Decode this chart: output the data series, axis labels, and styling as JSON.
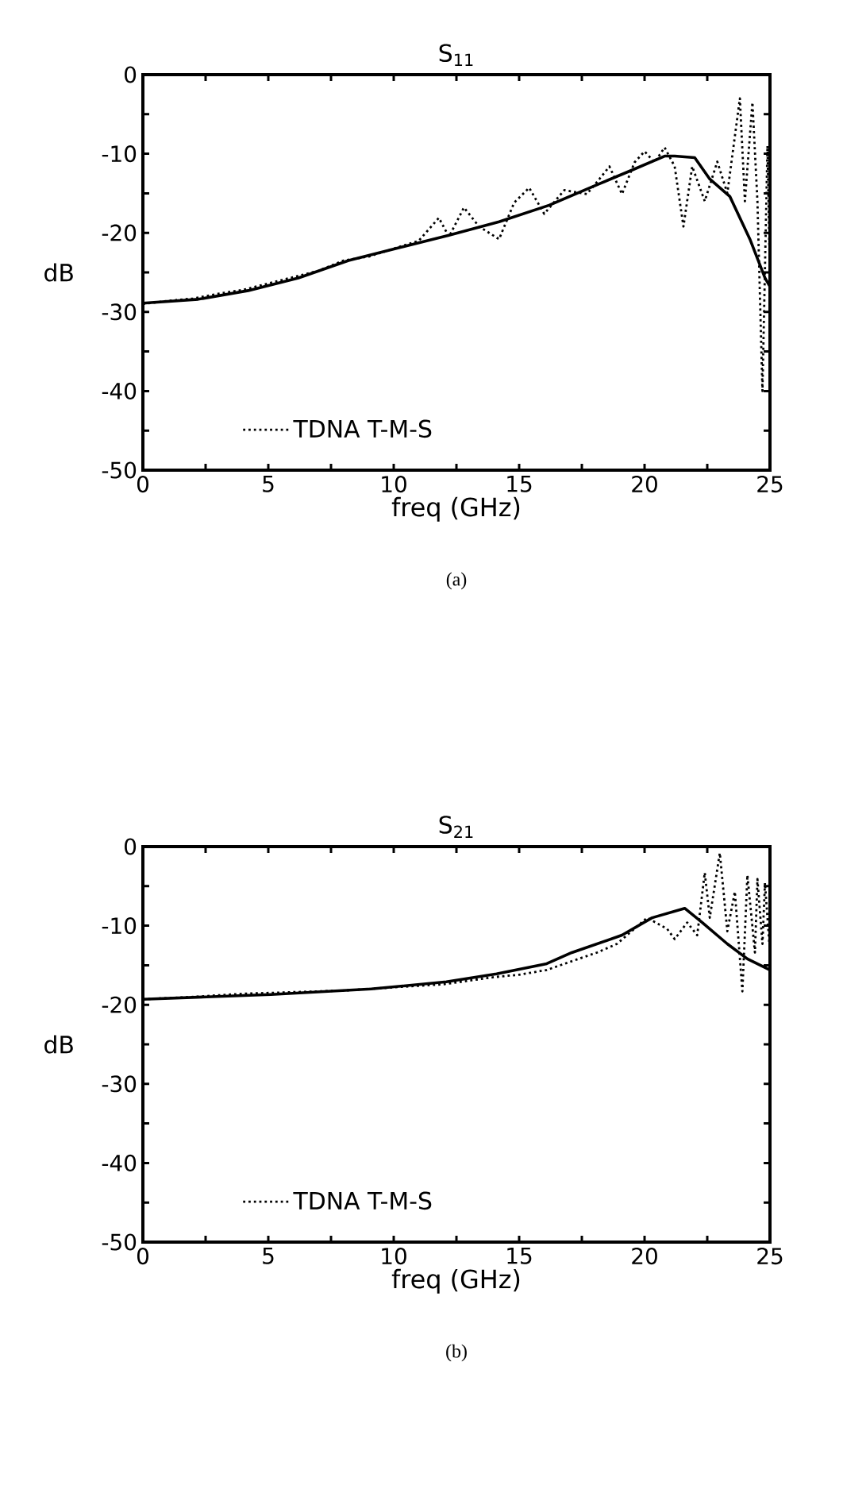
{
  "chart_data": [
    {
      "type": "line",
      "title": "S$_{11}$",
      "xlabel": "freq (GHz)",
      "ylabel": "dB",
      "xlim": [
        0,
        25
      ],
      "ylim": [
        -50,
        0
      ],
      "xticks": [
        0,
        5,
        10,
        15,
        20,
        25
      ],
      "yticks": [
        -50,
        -40,
        -30,
        -20,
        -10,
        0
      ],
      "legend": "bottom",
      "annotations": [
        "(a)"
      ],
      "series": [
        {
          "name": "TDNA T-M-S",
          "color": "#000000",
          "line_style": "dotted",
          "x": [
            0,
            1,
            2,
            3,
            4,
            5,
            6,
            7,
            8,
            9,
            10,
            11,
            11.8,
            12.2,
            12.8,
            13.4,
            14.2,
            14.8,
            15.4,
            16,
            16.8,
            17.7,
            18.2,
            18.6,
            19.1,
            19.6,
            20,
            20.4,
            20.8,
            21.2,
            21.55,
            21.9,
            22.4,
            22.9,
            23.3,
            23.8,
            24,
            24.3,
            24.5,
            24.7,
            24.9,
            25
          ],
          "values": [
            -29,
            -28.6,
            -28.3,
            -27.7,
            -27.2,
            -26.4,
            -25.6,
            -24.8,
            -23.5,
            -23,
            -22,
            -21,
            -18.1,
            -20.5,
            -16.8,
            -19.2,
            -20.8,
            -16.2,
            -14.3,
            -17.6,
            -14.6,
            -15.1,
            -13.2,
            -11.6,
            -15.1,
            -11.1,
            -9.7,
            -11.1,
            -9.2,
            -11.6,
            -19.2,
            -11.6,
            -16,
            -11,
            -15,
            -3,
            -16,
            -3.5,
            -16,
            -40,
            -9,
            -26
          ]
        },
        {
          "color": "#000000",
          "line_style": "solid",
          "x": [
            0,
            2.2,
            4.2,
            6.2,
            8.2,
            10.2,
            12.2,
            14.2,
            16.2,
            18.2,
            19.4,
            20.8,
            21.2,
            22,
            22.6,
            23.4,
            24.2,
            24.8,
            25
          ],
          "values": [
            -28.9,
            -28.4,
            -27.3,
            -25.7,
            -23.5,
            -21.9,
            -20.3,
            -18.6,
            -16.5,
            -13.8,
            -12.2,
            -10.3,
            -10.3,
            -10.5,
            -13.2,
            -15.4,
            -20.8,
            -25.7,
            -26.8
          ]
        }
      ]
    },
    {
      "type": "line",
      "title": "S$_{21}$",
      "xlabel": "freq (GHz)",
      "ylabel": "dB",
      "xlim": [
        0,
        25
      ],
      "ylim": [
        -50,
        0
      ],
      "xticks": [
        0,
        5,
        10,
        15,
        20,
        25
      ],
      "yticks": [
        -50,
        -40,
        -30,
        -20,
        -10,
        0
      ],
      "legend": "bottom",
      "annotations": [
        "(b)"
      ],
      "series": [
        {
          "name": "TDNA T-M-S",
          "color": "#000000",
          "line_style": "dotted",
          "x": [
            0,
            2,
            4,
            6,
            8,
            10,
            12,
            14,
            15,
            16.1,
            17,
            18.1,
            18.9,
            20.1,
            20.9,
            21.2,
            21.7,
            22.1,
            22.4,
            22.6,
            23,
            23.3,
            23.6,
            23.9,
            24.1,
            24.4,
            24.5,
            24.7,
            24.8,
            25
          ],
          "values": [
            -19.3,
            -19,
            -18.6,
            -18.4,
            -18.2,
            -17.8,
            -17.4,
            -16.5,
            -16.2,
            -15.6,
            -14.6,
            -13.4,
            -12.3,
            -9,
            -10.4,
            -11.7,
            -9.6,
            -11.2,
            -3.3,
            -9,
            -0.8,
            -10.7,
            -5.7,
            -18.3,
            -3.6,
            -13.4,
            -4.1,
            -12.3,
            -4.6,
            -13.4
          ]
        },
        {
          "color": "#000000",
          "line_style": "solid",
          "x": [
            0,
            5.1,
            9.1,
            12.1,
            14.1,
            16.1,
            17.1,
            19.1,
            20.3,
            21.6,
            22.3,
            23.3,
            24.1,
            25
          ],
          "values": [
            -19.3,
            -18.7,
            -18,
            -17.1,
            -16.1,
            -14.8,
            -13.4,
            -11.2,
            -9,
            -7.8,
            -9.6,
            -12.3,
            -14.2,
            -15.6
          ]
        }
      ]
    }
  ]
}
